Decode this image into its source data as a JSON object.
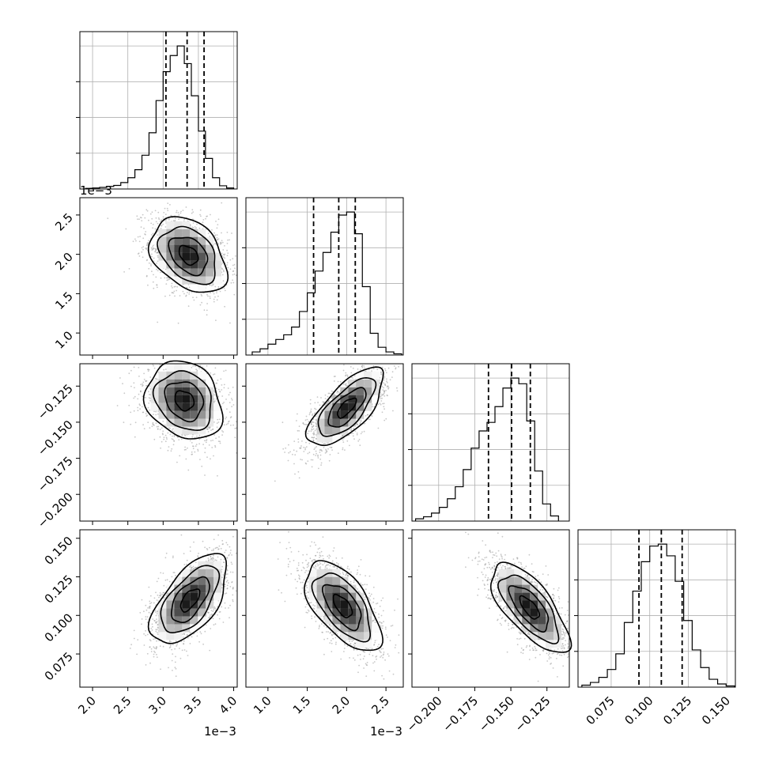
{
  "chart_data": {
    "type": "corner",
    "title": "",
    "grid": true,
    "quantiles": [
      0.16,
      0.5,
      0.84
    ],
    "parameters": [
      {
        "id": "p1",
        "range": [
          0.00182,
          0.00405
        ],
        "ticks": [
          0.002,
          0.0025,
          0.003,
          0.0035,
          0.004
        ],
        "tick_labels": [
          "2.0",
          "2.5",
          "3.0",
          "3.5",
          "4.0"
        ],
        "offset_label": "1e−3",
        "mean": 0.00335,
        "sigma": 0.00027,
        "quantile_values": [
          0.00304,
          0.00334,
          0.00358
        ]
      },
      {
        "id": "p2",
        "range": [
          0.00072,
          0.00272
        ],
        "ticks": [
          0.001,
          0.0015,
          0.002,
          0.0025
        ],
        "tick_labels": [
          "1.0",
          "1.5",
          "2.0",
          "2.5"
        ],
        "offset_label": "1e−3",
        "mean": 0.00185,
        "sigma": 0.00024,
        "quantile_values": [
          0.00158,
          0.0019,
          0.00211
        ]
      },
      {
        "id": "p3",
        "range": [
          -0.2185,
          -0.1095
        ],
        "ticks": [
          -0.2,
          -0.175,
          -0.15,
          -0.125
        ],
        "tick_labels": [
          "−0.200",
          "−0.175",
          "−0.150",
          "−0.125"
        ],
        "offset_label": "",
        "mean": -0.1495,
        "sigma": 0.0135,
        "quantile_values": [
          -0.1655,
          -0.1495,
          -0.1365
        ]
      },
      {
        "id": "p4",
        "range": [
          0.0535,
          0.1555
        ],
        "ticks": [
          0.075,
          0.1,
          0.125,
          0.15
        ],
        "tick_labels": [
          "0.075",
          "0.100",
          "0.125",
          "0.150"
        ],
        "offset_label": "",
        "mean": 0.1075,
        "sigma": 0.0145,
        "quantile_values": [
          0.093,
          0.1075,
          0.121
        ]
      }
    ],
    "histograms": [
      {
        "param": "p1",
        "bin_edges": [
          0.0019,
          0.002,
          0.0021,
          0.0022,
          0.0023,
          0.0024,
          0.0025,
          0.0026,
          0.0027,
          0.0028,
          0.0029,
          0.003,
          0.0031,
          0.0032,
          0.0033,
          0.0034,
          0.0035,
          0.0036,
          0.0037,
          0.0038,
          0.0039,
          0.004
        ],
        "counts": [
          2,
          3,
          5,
          8,
          11,
          20,
          35,
          60,
          105,
          175,
          275,
          365,
          415,
          445,
          390,
          290,
          180,
          95,
          35,
          10,
          3
        ]
      },
      {
        "param": "p2",
        "bin_edges": [
          0.0008,
          0.0009,
          0.001,
          0.0011,
          0.0012,
          0.0013,
          0.0014,
          0.0015,
          0.0016,
          0.0017,
          0.0018,
          0.0019,
          0.002,
          0.0021,
          0.0022,
          0.0023,
          0.0024,
          0.0025,
          0.0026,
          0.0027
        ],
        "counts": [
          10,
          20,
          35,
          50,
          65,
          90,
          140,
          200,
          270,
          330,
          395,
          450,
          460,
          390,
          220,
          70,
          25,
          10,
          4
        ]
      },
      {
        "param": "p3",
        "bin_edges": [
          -0.216,
          -0.2105,
          -0.205,
          -0.1995,
          -0.194,
          -0.1885,
          -0.183,
          -0.1775,
          -0.172,
          -0.1665,
          -0.161,
          -0.1555,
          -0.15,
          -0.1445,
          -0.139,
          -0.1335,
          -0.128,
          -0.1225,
          -0.117
        ],
        "counts": [
          8,
          15,
          28,
          48,
          78,
          120,
          180,
          255,
          315,
          345,
          400,
          465,
          500,
          480,
          350,
          175,
          60,
          18
        ]
      },
      {
        "param": "p4",
        "bin_edges": [
          0.056,
          0.0615,
          0.067,
          0.0725,
          0.078,
          0.0835,
          0.089,
          0.0945,
          0.1,
          0.1055,
          0.111,
          0.1165,
          0.122,
          0.1275,
          0.133,
          0.1385,
          0.144,
          0.1495,
          0.155
        ],
        "counts": [
          5,
          12,
          25,
          45,
          85,
          165,
          245,
          320,
          360,
          365,
          335,
          270,
          170,
          95,
          50,
          20,
          8,
          3
        ]
      }
    ],
    "pairs": [
      {
        "x": "p1",
        "y": "p2",
        "peak": [
          0.00336,
          0.00199
        ],
        "correlation": -0.35
      },
      {
        "x": "p1",
        "y": "p3",
        "peak": [
          0.0033,
          -0.135
        ],
        "correlation": -0.2
      },
      {
        "x": "p2",
        "y": "p3",
        "peak": [
          0.002,
          -0.14
        ],
        "correlation": 0.7
      },
      {
        "x": "p1",
        "y": "p4",
        "peak": [
          0.00338,
          0.11
        ],
        "correlation": 0.6
      },
      {
        "x": "p2",
        "y": "p4",
        "peak": [
          0.00195,
          0.106
        ],
        "correlation": -0.6
      },
      {
        "x": "p3",
        "y": "p4",
        "peak": [
          -0.137,
          0.105
        ],
        "correlation": -0.7
      }
    ]
  }
}
